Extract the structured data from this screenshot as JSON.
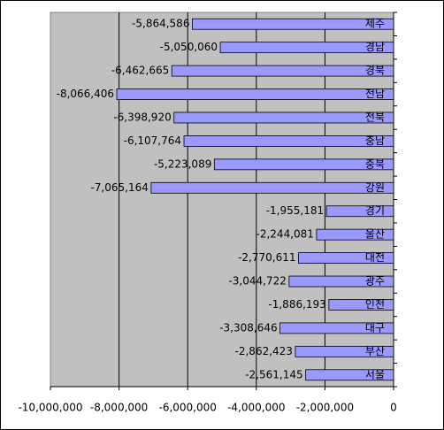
{
  "chart_data": {
    "type": "bar",
    "orientation": "horizontal",
    "categories": [
      "제주",
      "경남",
      "경북",
      "전남",
      "전북",
      "충남",
      "충북",
      "강원",
      "경기",
      "울산",
      "대전",
      "광주",
      "인천",
      "대구",
      "부산",
      "서울"
    ],
    "values": [
      -5864586,
      -5050060,
      -6462665,
      -8066406,
      -6398920,
      -6107764,
      -5223089,
      -7065164,
      -1955181,
      -2244081,
      -2770611,
      -3044722,
      -1886193,
      -3308646,
      -2862423,
      -2561145
    ],
    "value_labels": [
      "-5,864,586",
      "-5,050,060",
      "-6,462,665",
      "-8,066,406",
      "-6,398,920",
      "-6,107,764",
      "-5,223,089",
      "-7,065,164",
      "-1,955,181",
      "-2,244,081",
      "-2,770,611",
      "-3,044,722",
      "-1,886,193",
      "-3,308,646",
      "-2,862,423",
      "-2,561,145"
    ],
    "color": "#9999ff",
    "xlim": [
      -10000000,
      0
    ],
    "xticks": [
      {
        "value": -10000000,
        "label": "-10,000,000"
      },
      {
        "value": -8000000,
        "label": "-8,000,000"
      },
      {
        "value": -6000000,
        "label": "-6,000,000"
      },
      {
        "value": -4000000,
        "label": "-4,000,000"
      },
      {
        "value": -2000000,
        "label": "-2,000,000"
      },
      0
    ],
    "grid": true
  }
}
